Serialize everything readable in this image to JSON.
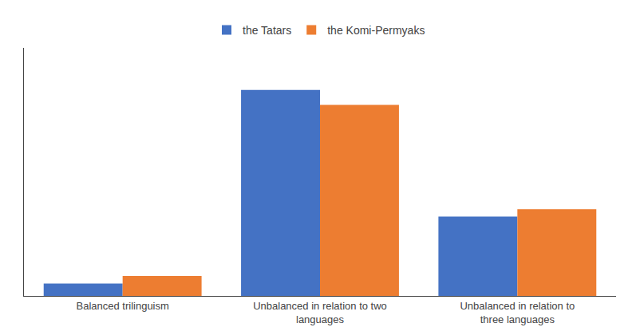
{
  "chart_data": {
    "type": "bar",
    "categories": [
      "Balanced trilinguism",
      "Unbalanced in relation to two\nlanguages",
      "Unbalanced in relation to\nthree languages"
    ],
    "series": [
      {
        "name": "the Tatars",
        "color": "#4472C4",
        "values": [
          5,
          83,
          32
        ]
      },
      {
        "name": "the Komi-Permyaks",
        "color": "#ED7D31",
        "values": [
          8,
          77,
          35
        ]
      }
    ],
    "ylim": [
      0,
      100
    ],
    "grid": false,
    "legend": "top",
    "tick_labels": "x"
  }
}
